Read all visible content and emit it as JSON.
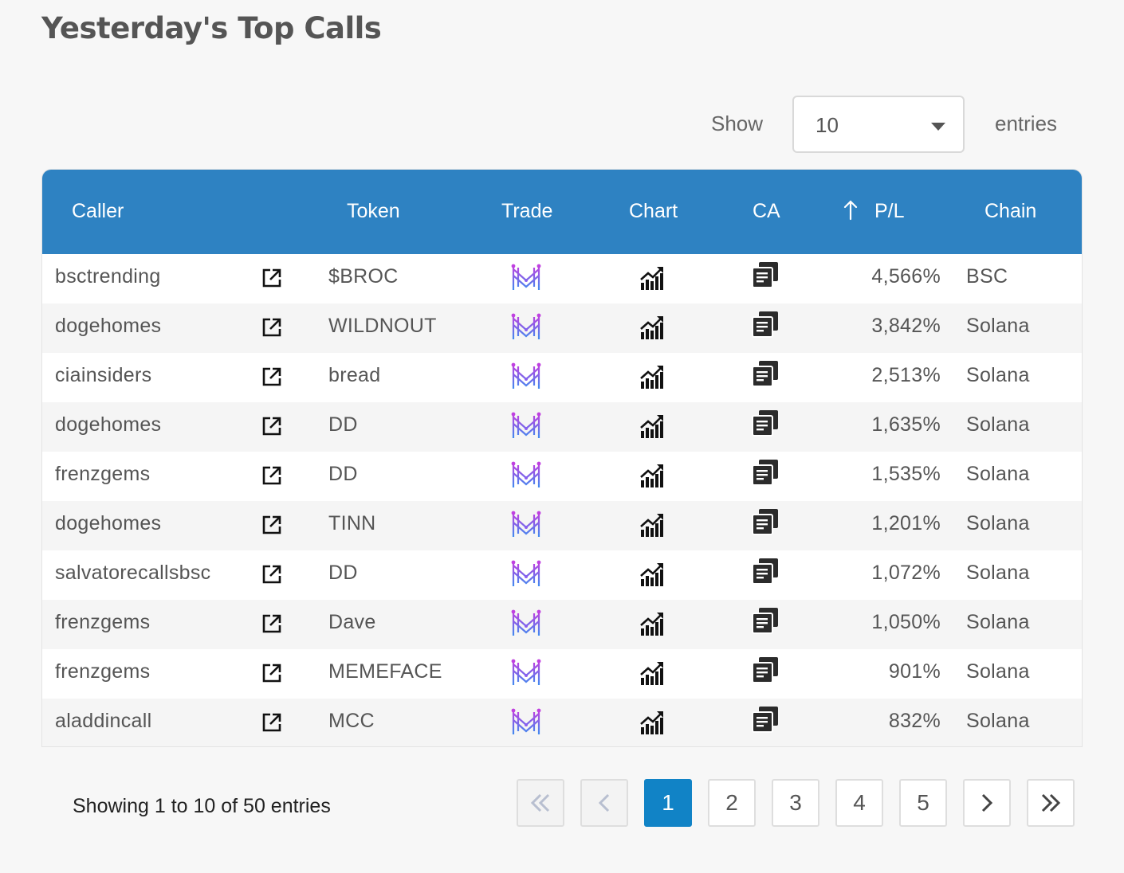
{
  "page": {
    "title": "Yesterday's Top Calls"
  },
  "length_menu": {
    "show_label": "Show",
    "value": "10",
    "entries_label": "entries"
  },
  "table": {
    "headers": {
      "caller": "Caller",
      "token": "Token",
      "trade": "Trade",
      "chart": "Chart",
      "ca": "CA",
      "pl": "P/L",
      "chain": "Chain"
    },
    "sorted_column": "pl",
    "rows": [
      {
        "caller": "bsctrending",
        "token": "$BROC",
        "pl": "4,566%",
        "chain": "BSC"
      },
      {
        "caller": "dogehomes",
        "token": "WILDNOUT",
        "pl": "3,842%",
        "chain": "Solana"
      },
      {
        "caller": "ciainsiders",
        "token": "bread",
        "pl": "2,513%",
        "chain": "Solana"
      },
      {
        "caller": "dogehomes",
        "token": "DD",
        "pl": "1,635%",
        "chain": "Solana"
      },
      {
        "caller": "frenzgems",
        "token": "DD",
        "pl": "1,535%",
        "chain": "Solana"
      },
      {
        "caller": "dogehomes",
        "token": "TINN",
        "pl": "1,201%",
        "chain": "Solana"
      },
      {
        "caller": "salvatorecallsbsc",
        "token": "DD",
        "pl": "1,072%",
        "chain": "Solana"
      },
      {
        "caller": "frenzgems",
        "token": "Dave",
        "pl": "1,050%",
        "chain": "Solana"
      },
      {
        "caller": "frenzgems",
        "token": "MEMEFACE",
        "pl": "901%",
        "chain": "Solana"
      },
      {
        "caller": "aladdincall",
        "token": "MCC",
        "pl": "832%",
        "chain": "Solana"
      }
    ],
    "row_icons": {
      "caller_link": "external-link-icon",
      "trade": "trade-logo-icon",
      "chart": "chart-growth-icon",
      "ca": "copy-icon"
    }
  },
  "footer": {
    "info": "Showing 1 to 10 of 50 entries",
    "pagination": {
      "first": "first-page-icon",
      "previous": "previous-page-icon",
      "pages": [
        "1",
        "2",
        "3",
        "4",
        "5"
      ],
      "current": "1",
      "next": "next-page-icon",
      "last": "last-page-icon"
    }
  },
  "colors": {
    "header_bg": "#2e82c2",
    "active_page": "#1183c6",
    "trade_logo_top": "#c040e0",
    "trade_logo_bottom": "#3f8bf0"
  }
}
